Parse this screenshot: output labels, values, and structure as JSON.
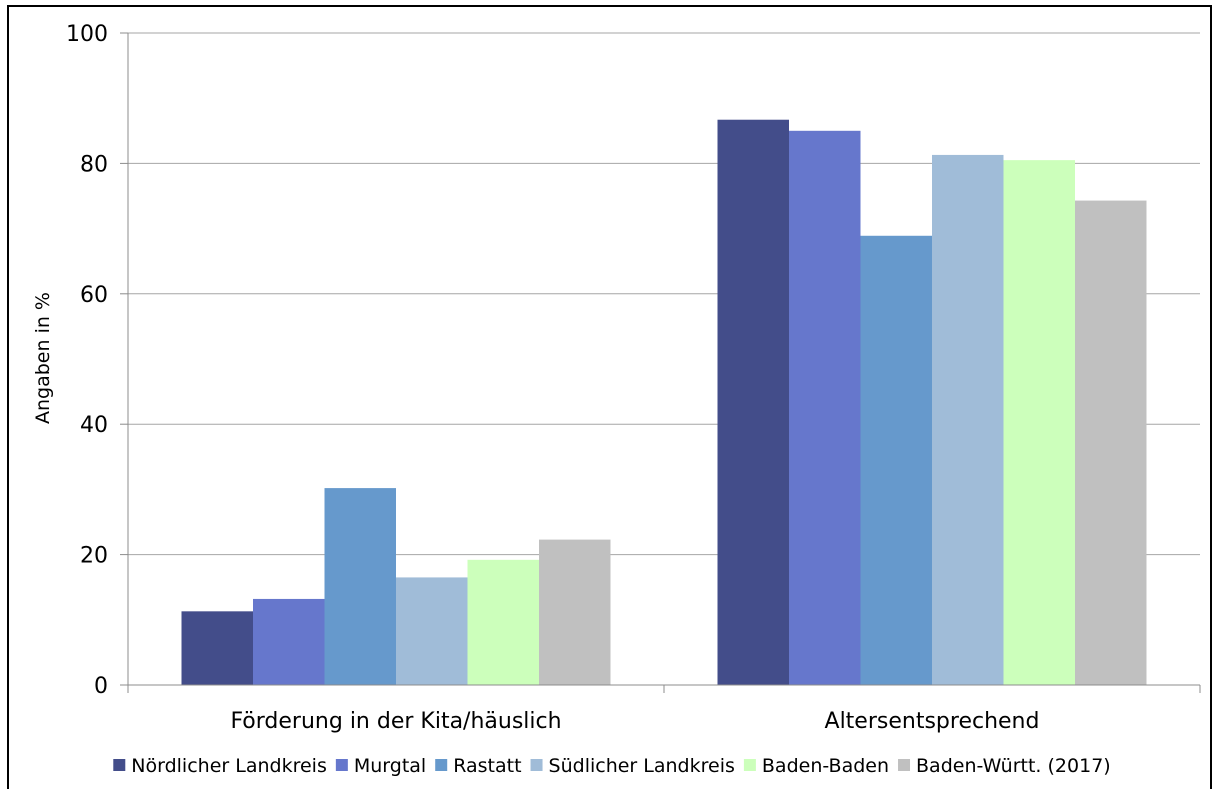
{
  "chart_data": {
    "type": "bar",
    "title": "",
    "xlabel": "",
    "ylabel": "Angaben in %",
    "ylim": [
      0,
      100
    ],
    "yticks": [
      0,
      20,
      40,
      60,
      80,
      100
    ],
    "grid": true,
    "legend_position": "bottom",
    "categories": [
      "Förderung in der Kita/häuslich",
      "Altersentsprechend"
    ],
    "series": [
      {
        "name": "Nördlicher Landkreis",
        "color": "#434d8a",
        "values": [
          11.3,
          86.7
        ]
      },
      {
        "name": "Murgtal",
        "color": "#6677cc",
        "values": [
          13.2,
          85.0
        ]
      },
      {
        "name": "Rastatt",
        "color": "#6699cc",
        "values": [
          30.2,
          68.9
        ]
      },
      {
        "name": "Südlicher Landkreis",
        "color": "#a0bcd8",
        "values": [
          16.5,
          81.3
        ]
      },
      {
        "name": "Baden-Baden",
        "color": "#ccffbb",
        "values": [
          19.2,
          80.5
        ]
      },
      {
        "name": "Baden-Württ. (2017)",
        "color": "#c0c0c0",
        "values": [
          22.3,
          74.3
        ]
      }
    ]
  }
}
